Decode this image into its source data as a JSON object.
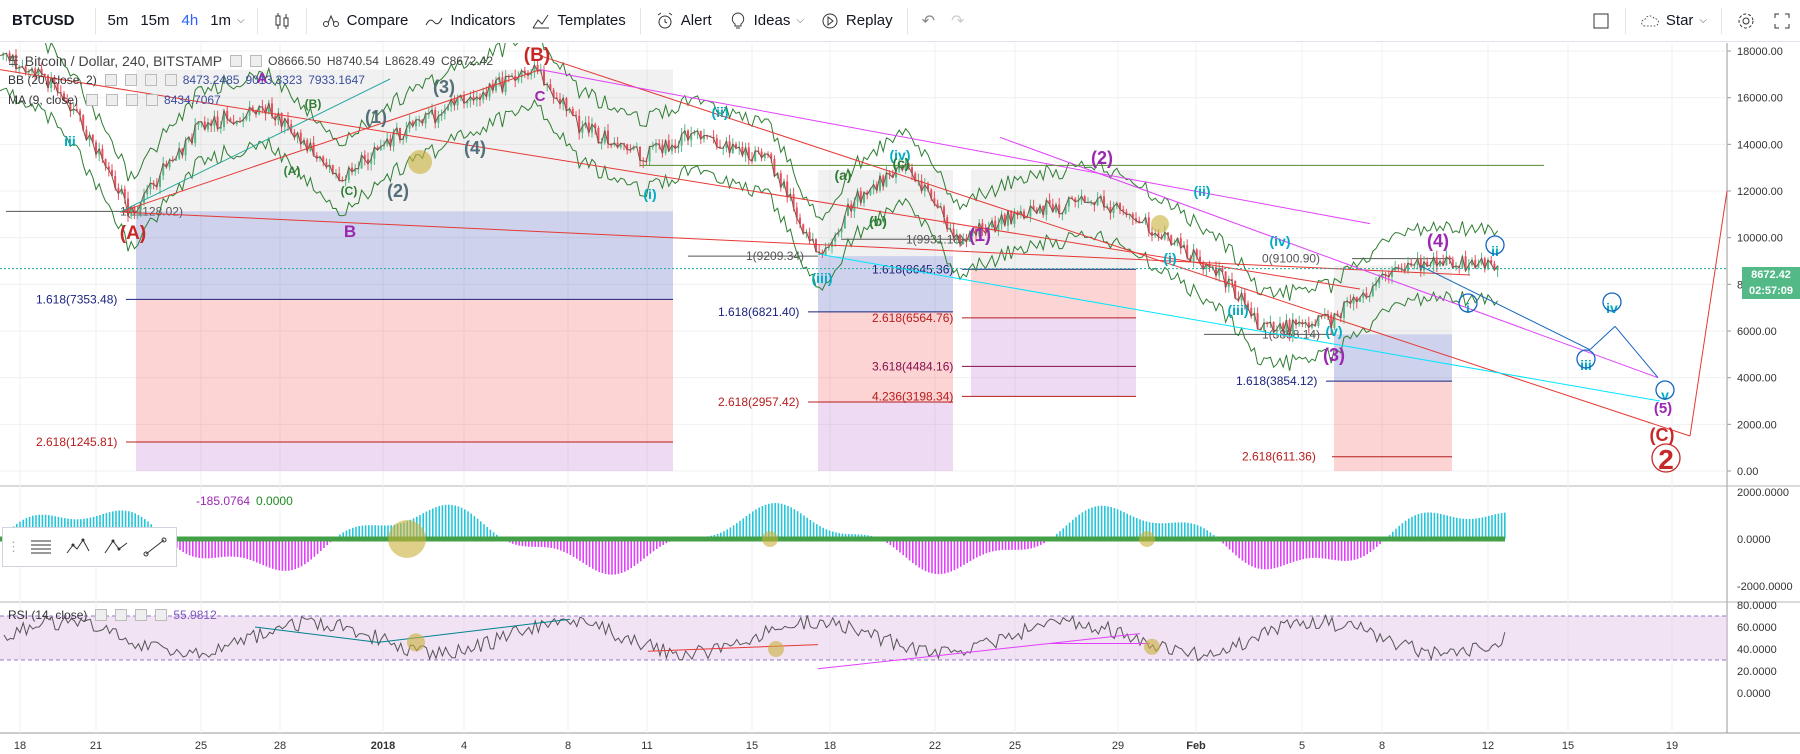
{
  "toolbar": {
    "symbol": "BTCUSD",
    "intervals": [
      "5m",
      "15m",
      "4h",
      "1m"
    ],
    "active_interval": "4h",
    "compare": "Compare",
    "indicators": "Indicators",
    "templates": "Templates",
    "alert": "Alert",
    "ideas": "Ideas",
    "replay": "Replay",
    "star": "Star"
  },
  "legend": {
    "title": "Bitcoin / Dollar, 240, BITSTAMP",
    "open": "O8666.50",
    "high": "H8740.54",
    "low": "L8628.49",
    "close": "C8672.42",
    "bb_label": "BB (20, close, 2)",
    "bb_values": [
      "8473.2485",
      "9013.3323",
      "7933.1647"
    ],
    "ma_label": "MA (9, close)",
    "ma_value": "8434.7067",
    "macd_values": [
      "-185.0764",
      "0.0000"
    ],
    "rsi_label": "RSI (14, close)",
    "rsi_value": "55.9812"
  },
  "price_axis": {
    "labels": [
      "18000.00",
      "16000.00",
      "14000.00",
      "12000.00",
      "10000.00",
      "8000.00",
      "6000.00",
      "4000.00",
      "2000.00",
      "0.00"
    ],
    "current_price": "8672.42",
    "countdown": "02:57:09",
    "macd_labels": [
      "2000.0000",
      "0.0000",
      "-2000.0000"
    ],
    "rsi_labels": [
      "80.0000",
      "60.0000",
      "40.0000",
      "20.0000",
      "0.0000"
    ]
  },
  "time_axis": {
    "labels": [
      "18",
      "21",
      "25",
      "28",
      "2018",
      "4",
      "8",
      "11",
      "15",
      "18",
      "22",
      "25",
      "29",
      "Feb",
      "5",
      "8",
      "12",
      "15",
      "19"
    ]
  },
  "fib_labels": [
    "1(11128.02)",
    "1.618(7353.48)",
    "2.618(1245.81)",
    "1(9209.34)",
    "1.618(6821.40)",
    "2.618(2957.42)",
    "1.618(8645.36)",
    "2.618(6564.76)",
    "3.618(4484.16)",
    "4.236(3198.34)",
    "1(9931.18)",
    "1(5858.14)",
    "1.618(3854.12)",
    "2.618(611.36)",
    "0(9100.90)"
  ],
  "wave_labels": {
    "red": [
      "(A)",
      "(B)",
      "2",
      "(C)"
    ],
    "purple": [
      "A",
      "B",
      "C",
      "(2)",
      "(3)",
      "(4)",
      "(1)",
      "(5)"
    ],
    "grey": [
      "(1)",
      "(2)",
      "(3)",
      "(4)"
    ],
    "cyan": [
      "iii",
      "(i)",
      "(ii)",
      "(iii)",
      "(iv)",
      "(i)",
      "(ii)",
      "(iii)",
      "(iv)",
      "(v)",
      "i",
      "ii",
      "iii",
      "iv",
      "v"
    ],
    "green": [
      "(A)",
      "(B)",
      "(C)",
      "(a)",
      "(b)",
      "(c)"
    ]
  },
  "colors": {
    "up": "#53b987",
    "down": "#eb4d5c",
    "accent": "#2962ff",
    "price_tag": "#53b987"
  }
}
